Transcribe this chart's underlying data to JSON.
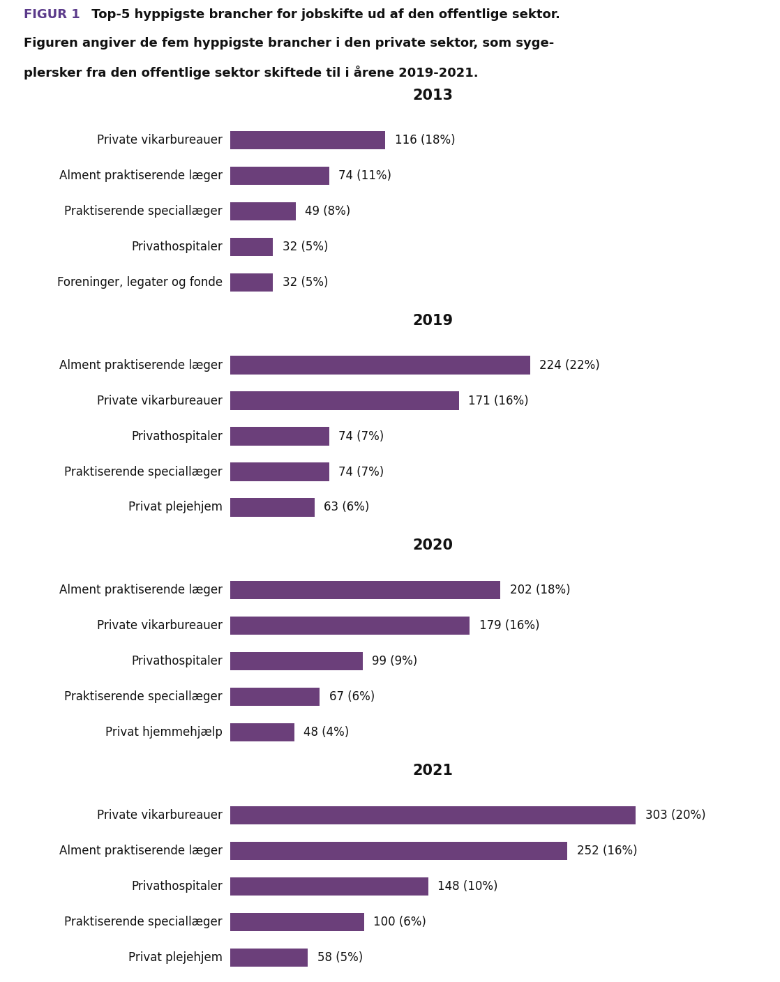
{
  "title_figur": "FIGUR 1",
  "title_line1": " Top-5 hyppigste brancher for jobskifte ud af den offentlige sektor.",
  "title_line2": "Figuren angiver de fem hyppigste brancher i den private sektor, som syge-",
  "title_line3": "plersker fra den offentlige sektor skiftede til i årene 2019-2021.",
  "bar_color": "#6B3F7A",
  "background_color": "#ffffff",
  "sections": [
    {
      "year": "2013",
      "bars": [
        {
          "label": "Private vikarbureauer",
          "value": 116,
          "pct": "18%"
        },
        {
          "label": "Alment praktiserende læger",
          "value": 74,
          "pct": "11%"
        },
        {
          "label": "Praktiserende speciallæger",
          "value": 49,
          "pct": "8%"
        },
        {
          "label": "Privathospitaler",
          "value": 32,
          "pct": "5%"
        },
        {
          "label": "Foreninger, legater og fonde",
          "value": 32,
          "pct": "5%"
        }
      ]
    },
    {
      "year": "2019",
      "bars": [
        {
          "label": "Alment praktiserende læger",
          "value": 224,
          "pct": "22%"
        },
        {
          "label": "Private vikarbureauer",
          "value": 171,
          "pct": "16%"
        },
        {
          "label": "Privathospitaler",
          "value": 74,
          "pct": "7%"
        },
        {
          "label": "Praktiserende speciallæger",
          "value": 74,
          "pct": "7%"
        },
        {
          "label": "Privat plejehjem",
          "value": 63,
          "pct": "6%"
        }
      ]
    },
    {
      "year": "2020",
      "bars": [
        {
          "label": "Alment praktiserende læger",
          "value": 202,
          "pct": "18%"
        },
        {
          "label": "Private vikarbureauer",
          "value": 179,
          "pct": "16%"
        },
        {
          "label": "Privathospitaler",
          "value": 99,
          "pct": "9%"
        },
        {
          "label": "Praktiserende speciallæger",
          "value": 67,
          "pct": "6%"
        },
        {
          "label": "Privat hjemmehjælp",
          "value": 48,
          "pct": "4%"
        }
      ]
    },
    {
      "year": "2021",
      "bars": [
        {
          "label": "Private vikarbureauer",
          "value": 303,
          "pct": "20%"
        },
        {
          "label": "Alment praktiserende læger",
          "value": 252,
          "pct": "16%"
        },
        {
          "label": "Privathospitaler",
          "value": 148,
          "pct": "10%"
        },
        {
          "label": "Praktiserende speciallæger",
          "value": 100,
          "pct": "6%"
        },
        {
          "label": "Privat plejehjem",
          "value": 58,
          "pct": "5%"
        }
      ]
    }
  ],
  "max_value": 303,
  "label_fontsize": 12,
  "year_fontsize": 15,
  "title_fontsize": 13,
  "value_label_fontsize": 12,
  "figur_color": "#5B3A8A"
}
